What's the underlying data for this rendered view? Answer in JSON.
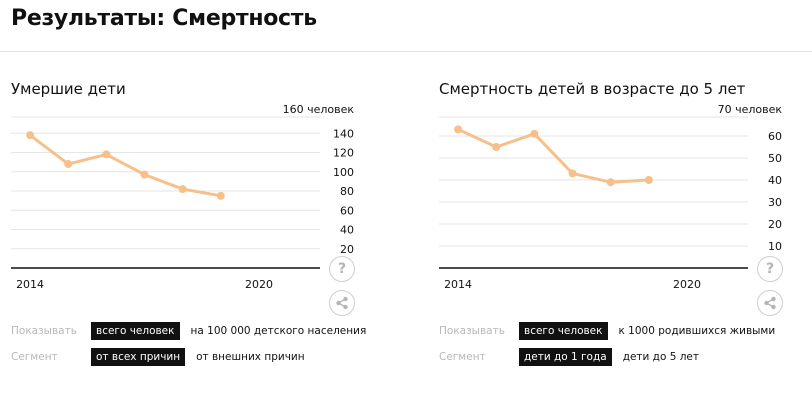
{
  "page": {
    "title": "Результаты: Смертность"
  },
  "charts": [
    {
      "title": "Умершие дети",
      "chart_data": {
        "type": "line",
        "x": [
          2014,
          2015,
          2016,
          2017,
          2018,
          2019
        ],
        "values": [
          138,
          108,
          118,
          97,
          82,
          75
        ],
        "ylim": [
          0,
          160
        ],
        "yticks": [
          20,
          40,
          60,
          80,
          100,
          120,
          140
        ],
        "top_label": "160 человек",
        "x_labels": [
          {
            "label": "2014",
            "year": 2014
          },
          {
            "label": "2020",
            "year": 2020
          }
        ],
        "xlim": [
          2013.5,
          2021.6
        ],
        "color": "#f7bf8a"
      },
      "show": {
        "label": "Показывать",
        "options": [
          {
            "label": "всего человек",
            "active": true
          },
          {
            "label": "на 100 000 детского населения",
            "active": false
          }
        ]
      },
      "segment": {
        "label": "Сегмент",
        "options": [
          {
            "label": "от всех причин",
            "active": true
          },
          {
            "label": "от внешних причин",
            "active": false
          }
        ]
      },
      "help_label": "?"
    },
    {
      "title": "Смертность детей в возрасте до 5 лет",
      "chart_data": {
        "type": "line",
        "x": [
          2014,
          2015,
          2016,
          2017,
          2018,
          2019
        ],
        "values": [
          63,
          55,
          61,
          43,
          39,
          40
        ],
        "ylim": [
          0,
          70
        ],
        "yticks": [
          10,
          20,
          30,
          40,
          50,
          60
        ],
        "top_label": "70 человек",
        "x_labels": [
          {
            "label": "2014",
            "year": 2014
          },
          {
            "label": "2020",
            "year": 2020
          }
        ],
        "xlim": [
          2013.5,
          2021.6
        ],
        "color": "#f7bf8a"
      },
      "show": {
        "label": "Показывать",
        "options": [
          {
            "label": "всего человек",
            "active": true
          },
          {
            "label": "к 1000 родившихся живыми",
            "active": false
          }
        ]
      },
      "segment": {
        "label": "Сегмент",
        "options": [
          {
            "label": "дети до 1 года",
            "active": true
          },
          {
            "label": "дети до 5 лет",
            "active": false
          }
        ]
      },
      "help_label": "?"
    }
  ],
  "icons": {
    "help": "question-icon",
    "share": "share-icon"
  }
}
